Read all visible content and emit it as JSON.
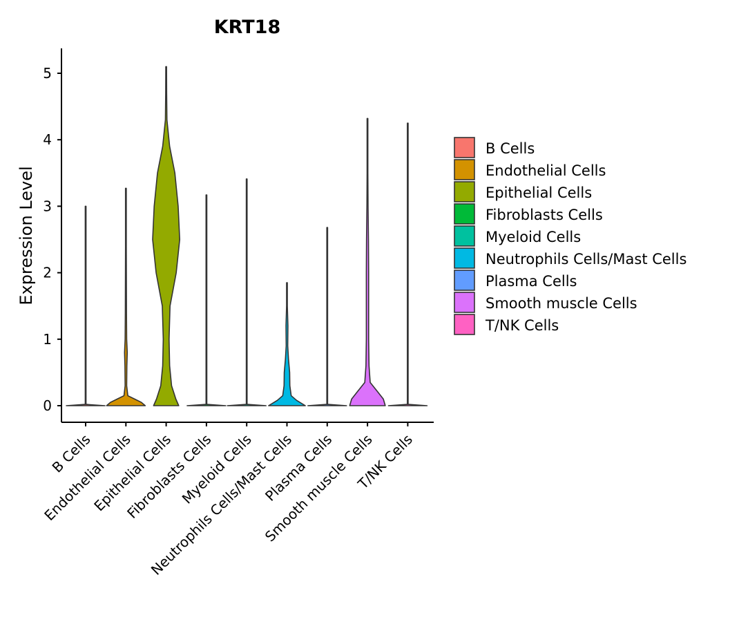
{
  "chart_data": {
    "type": "violin",
    "title": "KRT18",
    "xlabel": "",
    "ylabel": "Expression Level",
    "ylim": [
      -0.25,
      5.35
    ],
    "yticks": [
      0,
      1,
      2,
      3,
      4,
      5
    ],
    "grid": false,
    "legend_position": "right",
    "categories": [
      "B Cells",
      "Endothelial Cells",
      "Epithelial Cells",
      "Fibroblasts Cells",
      "Myeloid Cells",
      "Neutrophils Cells/Mast Cells",
      "Plasma Cells",
      "Smooth muscle Cells",
      "T/NK Cells"
    ],
    "colors": [
      "#F8766D",
      "#D39200",
      "#93AA00",
      "#00BA38",
      "#00C19F",
      "#00B9E3",
      "#619CFF",
      "#DB72FB",
      "#FF61C3"
    ],
    "max_values": [
      3.0,
      3.27,
      5.1,
      3.17,
      3.41,
      1.85,
      2.68,
      4.32,
      4.25
    ],
    "density_profiles": [
      [
        [
          0,
          1.0
        ],
        [
          0.02,
          0.02
        ],
        [
          3.0,
          0.02
        ]
      ],
      [
        [
          0,
          1.0
        ],
        [
          0.05,
          0.8
        ],
        [
          0.1,
          0.45
        ],
        [
          0.15,
          0.1
        ],
        [
          0.3,
          0.04
        ],
        [
          0.6,
          0.05
        ],
        [
          0.8,
          0.07
        ],
        [
          1.0,
          0.04
        ],
        [
          1.4,
          0.03
        ],
        [
          2.4,
          0.02
        ],
        [
          3.27,
          0.02
        ]
      ],
      [
        [
          0,
          0.65
        ],
        [
          0.1,
          0.5
        ],
        [
          0.3,
          0.28
        ],
        [
          0.6,
          0.18
        ],
        [
          1.0,
          0.15
        ],
        [
          1.5,
          0.2
        ],
        [
          2.0,
          0.52
        ],
        [
          2.5,
          0.7
        ],
        [
          3.0,
          0.62
        ],
        [
          3.5,
          0.45
        ],
        [
          3.9,
          0.18
        ],
        [
          4.3,
          0.04
        ],
        [
          4.7,
          0.025
        ],
        [
          5.1,
          0.02
        ]
      ],
      [
        [
          0,
          1.0
        ],
        [
          0.02,
          0.02
        ],
        [
          3.17,
          0.02
        ]
      ],
      [
        [
          0,
          1.0
        ],
        [
          0.02,
          0.02
        ],
        [
          3.41,
          0.02
        ]
      ],
      [
        [
          0,
          0.95
        ],
        [
          0.08,
          0.5
        ],
        [
          0.15,
          0.22
        ],
        [
          0.3,
          0.15
        ],
        [
          0.5,
          0.14
        ],
        [
          0.7,
          0.08
        ],
        [
          0.9,
          0.04
        ],
        [
          1.2,
          0.05
        ],
        [
          1.5,
          0.02
        ],
        [
          1.85,
          0.02
        ]
      ],
      [
        [
          0,
          1.0
        ],
        [
          0.02,
          0.02
        ],
        [
          2.68,
          0.02
        ]
      ],
      [
        [
          0,
          0.92
        ],
        [
          0.1,
          0.82
        ],
        [
          0.2,
          0.55
        ],
        [
          0.35,
          0.14
        ],
        [
          0.6,
          0.08
        ],
        [
          1.0,
          0.06
        ],
        [
          1.5,
          0.06
        ],
        [
          2.0,
          0.06
        ],
        [
          2.5,
          0.05
        ],
        [
          3.0,
          0.03
        ],
        [
          3.5,
          0.02
        ],
        [
          4.32,
          0.02
        ]
      ],
      [
        [
          0,
          1.0
        ],
        [
          0.02,
          0.02
        ],
        [
          4.25,
          0.02
        ]
      ]
    ]
  }
}
